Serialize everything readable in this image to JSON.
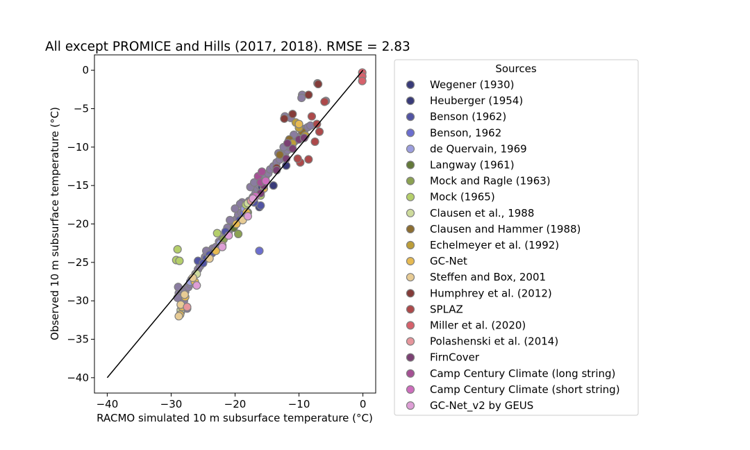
{
  "chart_data": {
    "type": "scatter",
    "title": "All except PROMICE and Hills (2017, 2018). RMSE = 2.83",
    "xlabel": "RACMO simulated 10 m subsurface temperature (°C)",
    "ylabel": "Observed 10 m subsurface temperature (°C)",
    "xlim": [
      -42,
      2
    ],
    "ylim": [
      -42,
      2
    ],
    "xticks": [
      -40,
      -30,
      -20,
      -10,
      0
    ],
    "yticks": [
      0,
      -5,
      -10,
      -15,
      -20,
      -25,
      -30,
      -35,
      -40
    ],
    "xtick_labels": [
      "−40",
      "−30",
      "−20",
      "−10",
      "0"
    ],
    "ytick_labels": [
      "0",
      "−5",
      "−10",
      "−15",
      "−20",
      "−25",
      "−30",
      "−35",
      "−40"
    ],
    "identity_line": {
      "x": [
        -40,
        0
      ],
      "y": [
        -40,
        0
      ]
    },
    "legend_title": "Sources",
    "legend_position": "outside-right",
    "series": [
      {
        "name": "Wegener (1930)",
        "color": "#393b79",
        "x": [
          -16.2,
          -14.0,
          -12.0
        ],
        "y": [
          -17.8,
          -15.0,
          -12.4
        ]
      },
      {
        "name": "Heuberger  (1954)",
        "color": "#393b79",
        "x": [
          -15.8
        ],
        "y": [
          -15.2
        ]
      },
      {
        "name": "Benson (1962)",
        "color": "#5254a3",
        "x": [
          -25.8,
          -24.5,
          -23.6,
          -19.3,
          -16.0,
          -17.0,
          -21.5,
          -24.0,
          -25.0
        ],
        "y": [
          -24.8,
          -24.5,
          -23.8,
          -19.5,
          -17.6,
          -17.2,
          -21.0,
          -24.0,
          -25.1
        ]
      },
      {
        "name": "Benson, 1962",
        "color": "#6b6ecf",
        "x": [
          -16.2,
          -18.6
        ],
        "y": [
          -23.5,
          -18.6
        ]
      },
      {
        "name": "de Quervain, 1969",
        "color": "#9c9ede",
        "x": [
          -27.0,
          -22.3,
          -18.5
        ],
        "y": [
          -27.5,
          -22.5,
          -18.0
        ]
      },
      {
        "name": "Langway (1961)",
        "color": "#637939",
        "x": [
          -20.2
        ],
        "y": [
          -20.5
        ]
      },
      {
        "name": "Mock and Ragle (1963)",
        "color": "#8ca252",
        "x": [
          -19.5,
          -21.8,
          -18.0
        ],
        "y": [
          -21.3,
          -22.0,
          -18.5
        ]
      },
      {
        "name": "Mock (1965)",
        "color": "#b5cf6b",
        "x": [
          -29.0,
          -29.2,
          -28.7,
          -22.8,
          -16.0,
          -18.3
        ],
        "y": [
          -23.3,
          -24.7,
          -24.8,
          -21.2,
          -16.3,
          -17.5
        ]
      },
      {
        "name": "Clausen et al., 1988",
        "color": "#cedb9c",
        "x": [
          -28.5,
          -26.0,
          -18.0
        ],
        "y": [
          -31.2,
          -26.5,
          -17.3
        ]
      },
      {
        "name": "Clausen and Hammer (1988)",
        "color": "#8c6d31",
        "x": [
          -13.0,
          -11.5,
          -9.5
        ],
        "y": [
          -11.0,
          -9.0,
          -8.0
        ]
      },
      {
        "name": "Echelmeyer et al. (1992)",
        "color": "#bd9e39",
        "x": [
          -10.5,
          -9.0,
          -10.0,
          -11.0
        ],
        "y": [
          -6.8,
          -8.5,
          -7.5,
          -9.5
        ]
      },
      {
        "name": "GC-Net",
        "color": "#e7ba52",
        "x": [
          -28.6,
          -28.3,
          -27.8,
          -26.3,
          -23.0,
          -19.8,
          -18.2,
          -17.0,
          -15.5,
          -10.0
        ],
        "y": [
          -31.8,
          -30.8,
          -29.5,
          -27.5,
          -23.5,
          -20.0,
          -18.5,
          -16.6,
          -15.4,
          -7.0
        ]
      },
      {
        "name": "Steffen and Box, 2001",
        "color": "#e7cb94",
        "x": [
          -28.8,
          -28.5,
          -27.9,
          -26.6,
          -24.0,
          -18.8,
          -17.5
        ],
        "y": [
          -32.0,
          -30.5,
          -29.2,
          -27.0,
          -24.5,
          -19.5,
          -17.0
        ]
      },
      {
        "name": "Humphrey et al. (2012)",
        "color": "#843c39",
        "x": [
          -13.5,
          -12.3,
          -11.0,
          -7.0,
          -8.5
        ],
        "y": [
          -12.7,
          -6.3,
          -5.7,
          -1.8,
          -3.2
        ]
      },
      {
        "name": "SPLAZ",
        "color": "#ad494a",
        "x": [
          -9.8,
          -8.5,
          -7.5,
          -6.8,
          -8.0,
          -7.2,
          -6.0,
          -10.2
        ],
        "y": [
          -12.0,
          -11.6,
          -9.3,
          -8.0,
          -6.0,
          -7.0,
          -4.1,
          -11.5
        ]
      },
      {
        "name": "Miller et al. (2020)",
        "color": "#d6616b",
        "x": [
          -0.1,
          -0.1,
          -0.1
        ],
        "y": [
          -0.3,
          -0.8,
          -1.4
        ]
      },
      {
        "name": "Polashenski et al. (2014)",
        "color": "#e7969c",
        "x": [
          -27.5,
          -22.0,
          -17.5
        ],
        "y": [
          -30.8,
          -22.8,
          -17.0
        ]
      },
      {
        "name": "FirnCover",
        "color": "#7b4173",
        "x": [
          -16.0,
          -15.5,
          -13.5,
          -12.0,
          -11.0,
          -10.0,
          -9.2,
          -11.8
        ],
        "y": [
          -16.0,
          -15.0,
          -13.0,
          -11.5,
          -10.2,
          -9.0,
          -8.8,
          -9.5
        ]
      },
      {
        "name": "Camp Century Climate (long string)",
        "color": "#a55194",
        "x": [
          -16.4,
          -16.0,
          -15.8
        ],
        "y": [
          -13.8,
          -14.6,
          -13.2
        ]
      },
      {
        "name": "Camp Century Climate (short string)",
        "color": "#ce6dbd",
        "x": [
          -16.8,
          -15.2
        ],
        "y": [
          -16.4,
          -14.4
        ]
      },
      {
        "name": "GC-Net_v2 by GEUS",
        "color": "#de9ed6",
        "x": [
          -26.0,
          -22.0,
          -21.0,
          -18.0,
          -17.2
        ],
        "y": [
          -28.0,
          -23.0,
          -21.5,
          -19.0,
          -16.7
        ]
      }
    ],
    "cloud_points": [
      [
        -28.8,
        -29.0
      ],
      [
        -28.2,
        -28.6
      ],
      [
        -27.8,
        -28.8
      ],
      [
        -28.5,
        -29.4
      ],
      [
        -27.3,
        -28.2
      ],
      [
        -26.8,
        -27.2
      ],
      [
        -26.2,
        -26.5
      ],
      [
        -25.8,
        -25.9
      ],
      [
        -25.2,
        -25.0
      ],
      [
        -24.7,
        -24.3
      ],
      [
        -24.0,
        -24.0
      ],
      [
        -23.5,
        -23.2
      ],
      [
        -23.0,
        -23.0
      ],
      [
        -22.5,
        -22.3
      ],
      [
        -22.0,
        -22.0
      ],
      [
        -21.5,
        -21.3
      ],
      [
        -21.0,
        -21.0
      ],
      [
        -20.6,
        -20.5
      ],
      [
        -20.2,
        -20.0
      ],
      [
        -19.8,
        -19.4
      ],
      [
        -19.5,
        -18.8
      ],
      [
        -19.0,
        -18.5
      ],
      [
        -18.5,
        -18.0
      ],
      [
        -18.2,
        -17.5
      ],
      [
        -18.9,
        -17.2
      ],
      [
        -17.8,
        -17.0
      ],
      [
        -17.2,
        -16.5
      ],
      [
        -16.8,
        -16.0
      ],
      [
        -16.5,
        -15.5
      ],
      [
        -16.2,
        -15.0
      ],
      [
        -16.0,
        -14.4
      ],
      [
        -15.6,
        -14.0
      ],
      [
        -15.2,
        -13.8
      ],
      [
        -14.8,
        -13.4
      ],
      [
        -14.5,
        -12.9
      ],
      [
        -14.0,
        -12.5
      ],
      [
        -13.5,
        -12.0
      ],
      [
        -13.0,
        -11.6
      ],
      [
        -12.5,
        -11.2
      ],
      [
        -12.2,
        -10.8
      ],
      [
        -11.8,
        -10.4
      ],
      [
        -11.4,
        -10.0
      ],
      [
        -11.0,
        -9.6
      ],
      [
        -10.6,
        -9.2
      ],
      [
        -10.2,
        -8.8
      ],
      [
        -9.8,
        -8.6
      ],
      [
        -9.4,
        -8.0
      ],
      [
        -9.0,
        -7.6
      ],
      [
        -8.6,
        -7.4
      ],
      [
        -8.2,
        -7.2
      ],
      [
        -12.4,
        -10.0
      ],
      [
        -11.6,
        -9.2
      ],
      [
        -10.8,
        -8.4
      ],
      [
        -13.2,
        -10.8
      ],
      [
        -20.8,
        -19.5
      ],
      [
        -21.2,
        -20.5
      ],
      [
        -19.2,
        -17.4
      ],
      [
        -20.0,
        -18.0
      ],
      [
        -17.6,
        -15.2
      ],
      [
        -17.0,
        -14.6
      ],
      [
        -24.5,
        -23.5
      ],
      [
        -25.5,
        -25.5
      ],
      [
        -27.0,
        -27.8
      ],
      [
        -28.0,
        -30.0
      ],
      [
        -28.5,
        -31.5
      ],
      [
        -27.5,
        -31.0
      ],
      [
        -28.9,
        -28.2
      ],
      [
        -29.0,
        -29.6
      ],
      [
        -9.5,
        -3.2
      ],
      [
        -9.6,
        -3.6
      ],
      [
        -12.2,
        -6.0
      ],
      [
        -11.3,
        -6.2
      ],
      [
        -7.1,
        -1.7
      ],
      [
        -5.8,
        -4.0
      ]
    ]
  }
}
